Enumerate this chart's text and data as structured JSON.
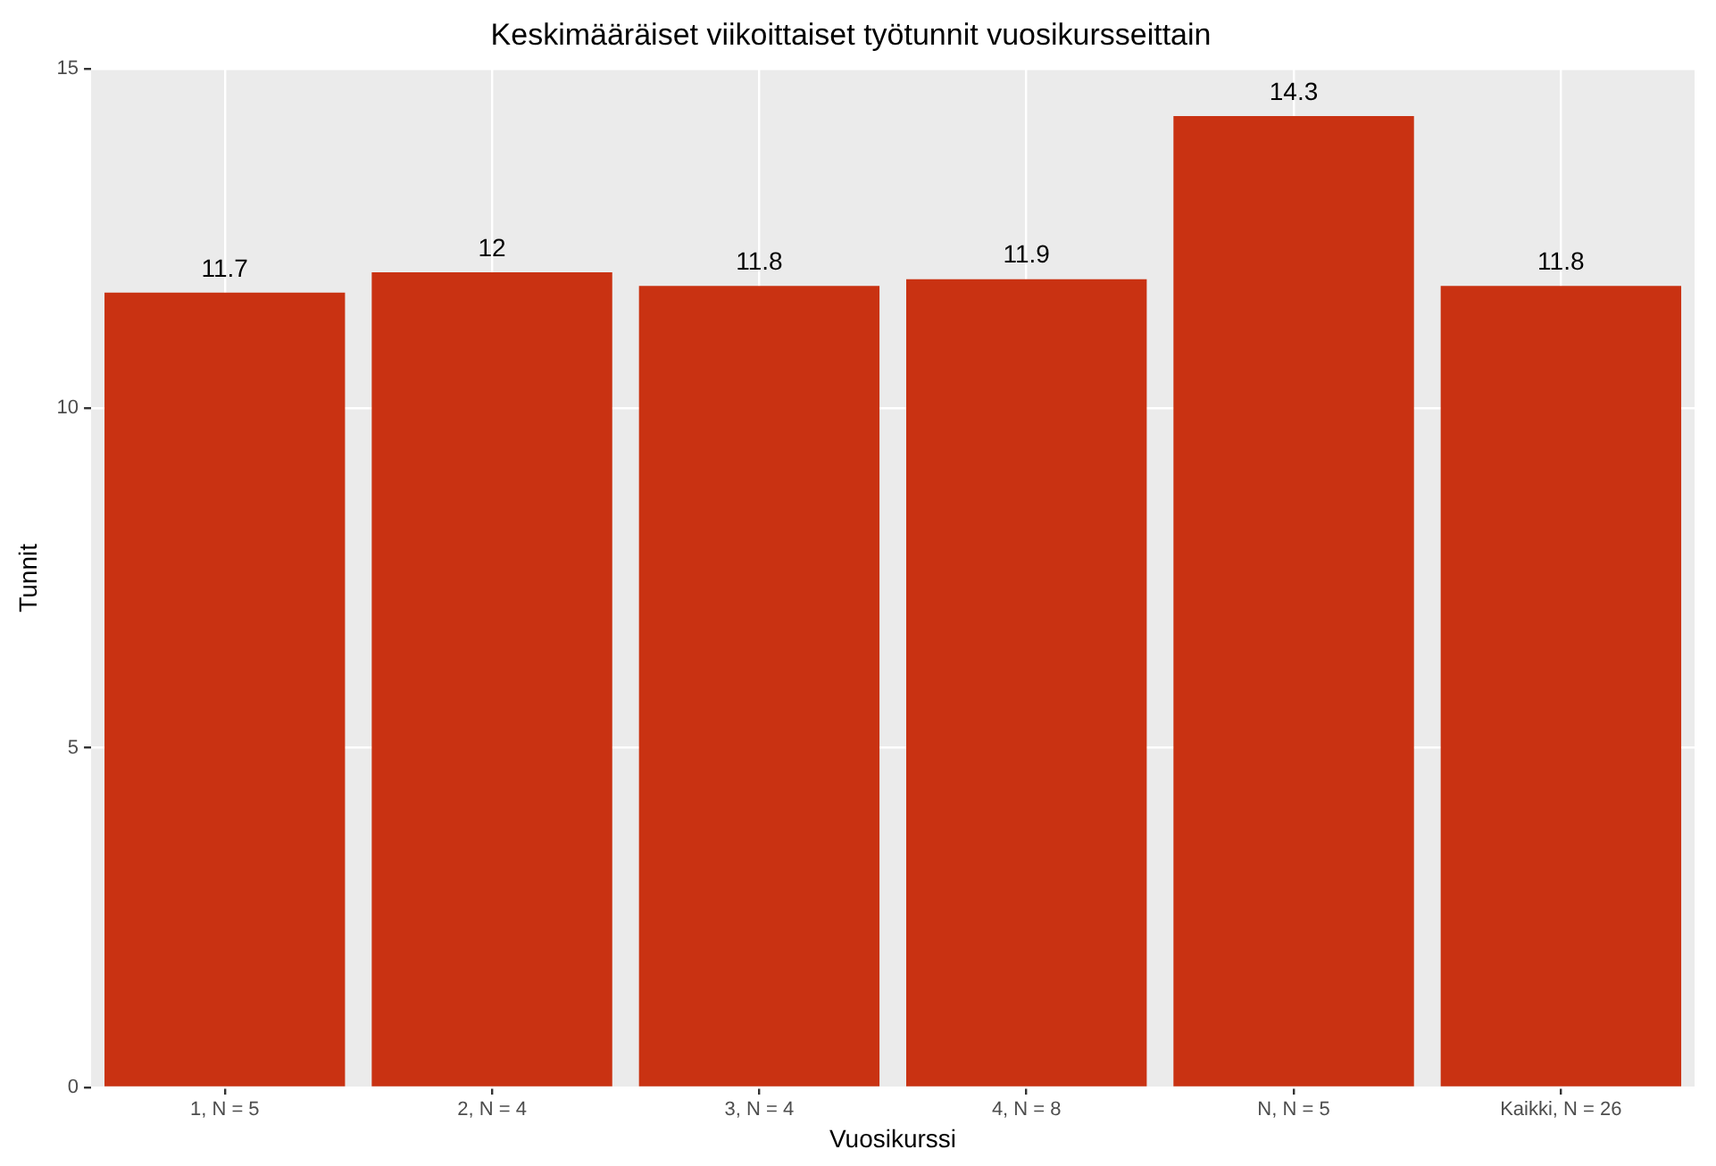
{
  "chart_data": {
    "type": "bar",
    "title": "Keskimääräiset viikoittaiset työtunnit vuosikursseittain",
    "xlabel": "Vuosikurssi",
    "ylabel": "Tunnit",
    "categories": [
      "1, N = 5",
      "2, N = 4",
      "3, N = 4",
      "4, N = 8",
      "N, N = 5",
      "Kaikki, N = 26"
    ],
    "values": [
      11.7,
      12,
      11.8,
      11.9,
      14.3,
      11.8
    ],
    "color": "#c93212",
    "ylim": [
      0,
      15
    ],
    "yticks": [
      0,
      5,
      10,
      15
    ],
    "grid": true,
    "data_labels": true
  }
}
